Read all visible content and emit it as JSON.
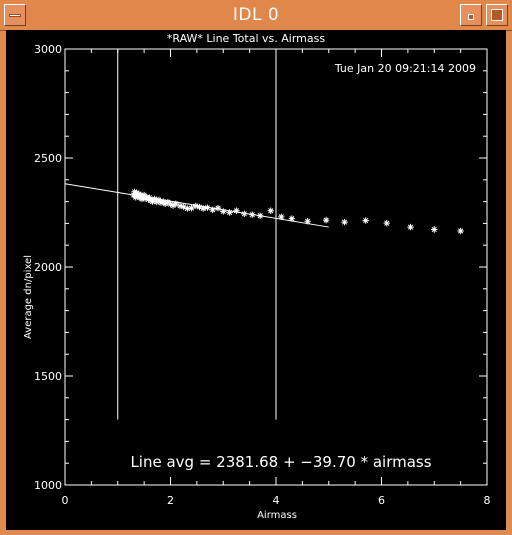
{
  "window": {
    "title": "IDL 0"
  },
  "plot": {
    "title": "*RAW* Line Total vs. Airmass",
    "timestamp": "Tue Jan 20 09:21:14 2009",
    "equation": "Line avg = 2381.68 + −39.70 * airmass"
  },
  "chart_data": {
    "type": "scatter",
    "title": "*RAW* Line Total vs. Airmass",
    "xlabel": "Airmass",
    "ylabel": "Average dn/pixel",
    "xlim": [
      0,
      8
    ],
    "ylim": [
      1000,
      3000
    ],
    "x_ticks": [
      0,
      2,
      4,
      6,
      8
    ],
    "y_ticks": [
      1000,
      1500,
      2000,
      2500,
      3000
    ],
    "grid": false,
    "colors": {
      "background": "#000000",
      "foreground": "#ffffff"
    },
    "vertical_lines": [
      {
        "x": 1.0,
        "y_range": [
          1300,
          3000
        ]
      },
      {
        "x": 4.0,
        "y_range": [
          1300,
          3000
        ]
      }
    ],
    "fit_line": {
      "intercept": 2381.68,
      "slope": -39.7,
      "x_range": [
        0,
        5
      ]
    },
    "series": [
      {
        "marker": "asterisk",
        "x": [
          1.3,
          1.32,
          1.34,
          1.36,
          1.38,
          1.4,
          1.42,
          1.44,
          1.46,
          1.48,
          1.5,
          1.52,
          1.55,
          1.58,
          1.6,
          1.63,
          1.66,
          1.7,
          1.74,
          1.78,
          1.82,
          1.86,
          1.9,
          1.95,
          2.0,
          2.05,
          2.1,
          2.18,
          2.25,
          2.32,
          2.4,
          2.48,
          2.55,
          2.62,
          2.7,
          2.8,
          2.9,
          3.0,
          3.12,
          3.25,
          3.4,
          3.55,
          3.7,
          3.9,
          4.1,
          4.3,
          4.6,
          4.95,
          5.3,
          5.7,
          6.1,
          6.55,
          7.0,
          7.5
        ],
        "y": [
          2330,
          2345,
          2320,
          2340,
          2325,
          2335,
          2318,
          2328,
          2312,
          2322,
          2330,
          2315,
          2320,
          2310,
          2318,
          2305,
          2300,
          2312,
          2298,
          2308,
          2295,
          2300,
          2290,
          2298,
          2288,
          2282,
          2290,
          2280,
          2276,
          2268,
          2270,
          2280,
          2275,
          2268,
          2272,
          2262,
          2270,
          2255,
          2250,
          2258,
          2244,
          2240,
          2235,
          2258,
          2230,
          2222,
          2210,
          2215,
          2206,
          2213,
          2201,
          2183,
          2172,
          2165
        ]
      }
    ]
  }
}
